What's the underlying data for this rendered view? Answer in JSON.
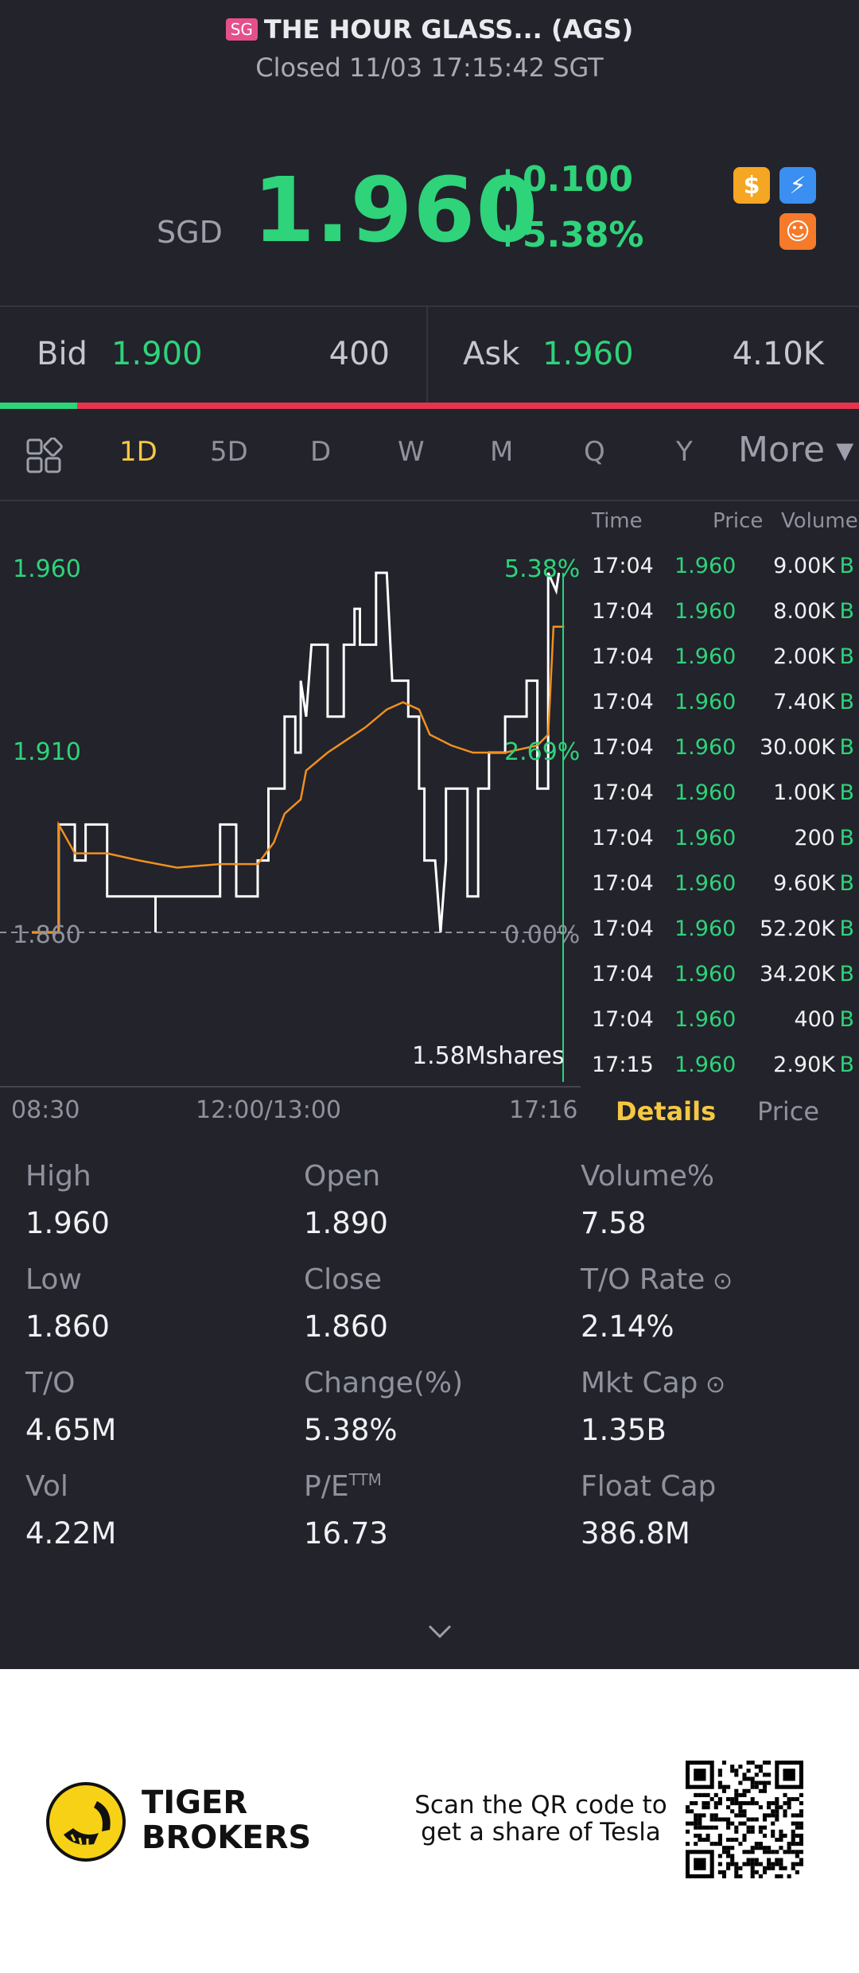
{
  "header": {
    "badge": "SG",
    "title": "THE HOUR GLASS... (AGS)",
    "status": "Closed 11/03 17:15:42 SGT"
  },
  "quote": {
    "currency": "SGD",
    "price": "1.960",
    "change": "+0.100",
    "change_pct": "+5.38%",
    "icons": [
      "dollar-icon",
      "lightning-icon",
      "orange-badge-icon"
    ],
    "icon_glyphs": {
      "dollar": "$",
      "bolt": "⚡",
      "orange": "☺"
    }
  },
  "bid_ask": {
    "bid_label": "Bid",
    "bid_price": "1.900",
    "bid_qty": "400",
    "ask_label": "Ask",
    "ask_price": "1.960",
    "ask_qty": "4.10K",
    "bid_ratio": 0.09
  },
  "tabs": {
    "items": [
      "1D",
      "5D",
      "D",
      "W",
      "M",
      "Q",
      "Y"
    ],
    "active": "1D",
    "more": "More ▾"
  },
  "chart_data": {
    "type": "line",
    "y_labels": {
      "top": "1.960",
      "mid": "1.910",
      "bottom": "1.860"
    },
    "pct_labels": {
      "top": "5.38%",
      "mid": "2.69%",
      "bottom": "0.00%"
    },
    "ylim": [
      1.86,
      1.96
    ],
    "volume_label": "1.58Mshares",
    "x_ticks": [
      "08:30",
      "12:00/13:00",
      "17:16"
    ],
    "series": [
      {
        "color": "#ffffff",
        "points": [
          [
            0,
            1.86
          ],
          [
            0.05,
            1.86
          ],
          [
            0.05,
            1.89
          ],
          [
            0.08,
            1.89
          ],
          [
            0.08,
            1.88
          ],
          [
            0.1,
            1.88
          ],
          [
            0.1,
            1.89
          ],
          [
            0.14,
            1.89
          ],
          [
            0.14,
            1.87
          ],
          [
            0.23,
            1.87
          ],
          [
            0.23,
            1.86
          ],
          [
            0.23,
            1.87
          ],
          [
            0.35,
            1.87
          ],
          [
            0.35,
            1.89
          ],
          [
            0.38,
            1.89
          ],
          [
            0.38,
            1.87
          ],
          [
            0.42,
            1.87
          ],
          [
            0.42,
            1.88
          ],
          [
            0.44,
            1.88
          ],
          [
            0.44,
            1.9
          ],
          [
            0.47,
            1.9
          ],
          [
            0.47,
            1.92
          ],
          [
            0.49,
            1.92
          ],
          [
            0.49,
            1.91
          ],
          [
            0.5,
            1.91
          ],
          [
            0.5,
            1.93
          ],
          [
            0.51,
            1.92
          ],
          [
            0.52,
            1.94
          ],
          [
            0.55,
            1.94
          ],
          [
            0.55,
            1.92
          ],
          [
            0.58,
            1.92
          ],
          [
            0.58,
            1.94
          ],
          [
            0.6,
            1.94
          ],
          [
            0.6,
            1.95
          ],
          [
            0.61,
            1.95
          ],
          [
            0.61,
            1.94
          ],
          [
            0.64,
            1.94
          ],
          [
            0.64,
            1.96
          ],
          [
            0.66,
            1.96
          ],
          [
            0.67,
            1.93
          ],
          [
            0.7,
            1.93
          ],
          [
            0.7,
            1.92
          ],
          [
            0.72,
            1.92
          ],
          [
            0.72,
            1.9
          ],
          [
            0.73,
            1.9
          ],
          [
            0.73,
            1.88
          ],
          [
            0.75,
            1.88
          ],
          [
            0.76,
            1.86
          ],
          [
            0.77,
            1.88
          ],
          [
            0.77,
            1.9
          ],
          [
            0.81,
            1.9
          ],
          [
            0.81,
            1.87
          ],
          [
            0.83,
            1.87
          ],
          [
            0.83,
            1.9
          ],
          [
            0.85,
            1.9
          ],
          [
            0.85,
            1.91
          ],
          [
            0.88,
            1.91
          ],
          [
            0.88,
            1.92
          ],
          [
            0.92,
            1.92
          ],
          [
            0.92,
            1.93
          ],
          [
            0.94,
            1.93
          ],
          [
            0.94,
            1.9
          ],
          [
            0.96,
            1.9
          ],
          [
            0.96,
            1.96
          ],
          [
            0.975,
            1.955
          ],
          [
            0.98,
            1.96
          ]
        ]
      },
      {
        "color": "#f0901e",
        "points": [
          [
            0,
            1.86
          ],
          [
            0.05,
            1.86
          ],
          [
            0.05,
            1.89
          ],
          [
            0.08,
            1.882
          ],
          [
            0.14,
            1.882
          ],
          [
            0.2,
            1.88
          ],
          [
            0.27,
            1.878
          ],
          [
            0.35,
            1.879
          ],
          [
            0.42,
            1.879
          ],
          [
            0.45,
            1.885
          ],
          [
            0.47,
            1.893
          ],
          [
            0.5,
            1.897
          ],
          [
            0.51,
            1.905
          ],
          [
            0.55,
            1.91
          ],
          [
            0.58,
            1.913
          ],
          [
            0.62,
            1.917
          ],
          [
            0.66,
            1.922
          ],
          [
            0.69,
            1.924
          ],
          [
            0.72,
            1.922
          ],
          [
            0.74,
            1.915
          ],
          [
            0.78,
            1.912
          ],
          [
            0.82,
            1.91
          ],
          [
            0.88,
            1.91
          ],
          [
            0.94,
            1.912
          ],
          [
            0.96,
            1.915
          ],
          [
            0.97,
            1.945
          ],
          [
            0.99,
            1.945
          ]
        ]
      }
    ]
  },
  "trades": {
    "headers": {
      "time": "Time",
      "price": "Price",
      "volume": "Volume"
    },
    "rows": [
      {
        "time": "17:04",
        "price": "1.960",
        "volume": "9.00K",
        "side": "B"
      },
      {
        "time": "17:04",
        "price": "1.960",
        "volume": "8.00K",
        "side": "B"
      },
      {
        "time": "17:04",
        "price": "1.960",
        "volume": "2.00K",
        "side": "B"
      },
      {
        "time": "17:04",
        "price": "1.960",
        "volume": "7.40K",
        "side": "B"
      },
      {
        "time": "17:04",
        "price": "1.960",
        "volume": "30.00K",
        "side": "B"
      },
      {
        "time": "17:04",
        "price": "1.960",
        "volume": "1.00K",
        "side": "B"
      },
      {
        "time": "17:04",
        "price": "1.960",
        "volume": "200",
        "side": "B"
      },
      {
        "time": "17:04",
        "price": "1.960",
        "volume": "9.60K",
        "side": "B"
      },
      {
        "time": "17:04",
        "price": "1.960",
        "volume": "52.20K",
        "side": "B"
      },
      {
        "time": "17:04",
        "price": "1.960",
        "volume": "34.20K",
        "side": "B"
      },
      {
        "time": "17:04",
        "price": "1.960",
        "volume": "400",
        "side": "B"
      },
      {
        "time": "17:15",
        "price": "1.960",
        "volume": "2.90K",
        "side": "B"
      }
    ]
  },
  "detail_tabs": {
    "details": "Details",
    "price": "Price"
  },
  "stats": [
    {
      "label": "High",
      "value": "1.960"
    },
    {
      "label": "Open",
      "value": "1.890"
    },
    {
      "label": "Volume%",
      "value": "7.58"
    },
    {
      "label": "Low",
      "value": "1.860"
    },
    {
      "label": "Close",
      "value": "1.860"
    },
    {
      "label": "T/O Rate",
      "value": "2.14%"
    },
    {
      "label": "T/O",
      "value": "4.65M"
    },
    {
      "label": "Change(%)",
      "value": "5.38%"
    },
    {
      "label": "Mkt Cap",
      "value": "1.35B"
    },
    {
      "label": "Vol",
      "value": "4.22M"
    },
    {
      "label": "P/E",
      "value": "16.73"
    },
    {
      "label": "Float Cap",
      "value": "386.8M"
    }
  ],
  "pe_superscript": "TTM",
  "footer": {
    "brand_line1": "TIGER",
    "brand_line2": "BROKERS",
    "scan_line1": "Scan the QR code to",
    "scan_line2": "get a share of Tesla"
  },
  "colors": {
    "green": "#2ed37a",
    "red": "#e8334f",
    "gold": "#f5c842"
  }
}
